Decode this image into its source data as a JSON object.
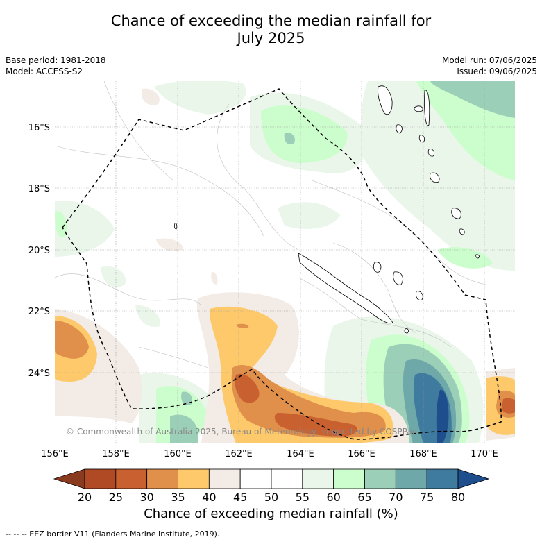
{
  "title": {
    "line1": "Chance of exceeding the median rainfall for",
    "line2": "July 2025"
  },
  "meta": {
    "base_period": "Base period: 1981-2018",
    "model": "Model: ACCESS-S2",
    "model_run": "Model run: 07/06/2025",
    "issued": "Issued: 09/06/2025"
  },
  "map": {
    "copyright": "© Commonwealth of Australia 2025, Bureau of Meteorology, supported by COSPPac",
    "lat_labels": [
      "16°S",
      "18°S",
      "20°S",
      "22°S",
      "24°S"
    ],
    "lon_labels": [
      "156°E",
      "158°E",
      "160°E",
      "162°E",
      "164°E",
      "166°E",
      "168°E",
      "170°E"
    ]
  },
  "colorbar": {
    "ticks": [
      "20",
      "25",
      "30",
      "35",
      "40",
      "45",
      "50",
      "55",
      "60",
      "65",
      "70",
      "75",
      "80"
    ],
    "colors": [
      "#b04a24",
      "#c8602f",
      "#e0904a",
      "#fdc96a",
      "#f2ebe6",
      "#ffffff",
      "#ffffff",
      "#eaf6ea",
      "#ccfdcc",
      "#9ccfb8",
      "#6ea8a8",
      "#3f7b9e"
    ],
    "under_color": "#8a3a1e",
    "over_color": "#1f4e8c",
    "label": "Chance of exceeding median rainfall (%)"
  },
  "footnote": "--  --  -- EEZ border V11 (Flanders Marine Institute, 2019)."
}
